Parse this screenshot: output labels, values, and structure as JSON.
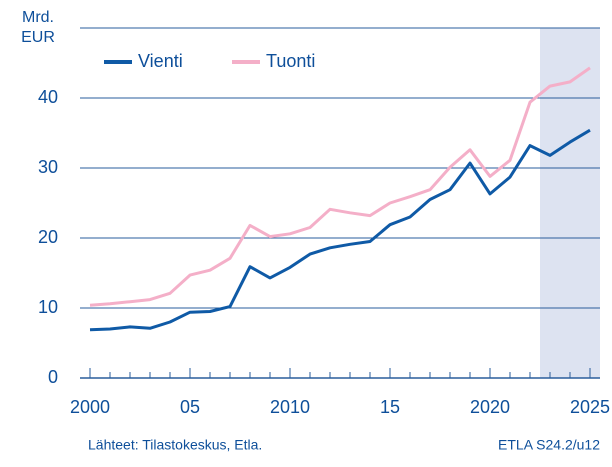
{
  "chart_data": {
    "type": "line",
    "ylabel": [
      "Mrd.",
      "EUR"
    ],
    "x": [
      2000,
      2001,
      2002,
      2003,
      2004,
      2005,
      2006,
      2007,
      2008,
      2009,
      2010,
      2011,
      2012,
      2013,
      2014,
      2015,
      2016,
      2017,
      2018,
      2019,
      2020,
      2021,
      2022,
      2023,
      2024,
      2025
    ],
    "series": [
      {
        "name": "Vienti",
        "color": "#0f5aa6",
        "values": [
          6.9,
          7.0,
          7.3,
          7.1,
          8.0,
          9.4,
          9.5,
          10.2,
          15.9,
          14.3,
          15.8,
          17.7,
          18.6,
          19.1,
          19.5,
          21.9,
          23.0,
          25.5,
          26.9,
          30.7,
          26.3,
          28.7,
          33.2,
          31.8,
          33.7,
          35.4
        ]
      },
      {
        "name": "Tuonti",
        "color": "#f4afc8",
        "values": [
          10.4,
          10.6,
          10.9,
          11.2,
          12.1,
          14.7,
          15.4,
          17.1,
          21.8,
          20.2,
          20.6,
          21.5,
          24.1,
          23.6,
          23.2,
          25.0,
          25.9,
          26.9,
          30.1,
          32.6,
          28.8,
          31.1,
          39.4,
          41.7,
          42.3,
          44.3
        ]
      }
    ],
    "xlim": [
      1999.5,
      2025.5
    ],
    "xticks": [
      2000,
      {
        "value": 2005,
        "label": "05"
      },
      2010,
      {
        "value": 2015,
        "label": "15"
      },
      2020,
      2025
    ],
    "ylim": [
      0,
      50
    ],
    "yticks": [
      0,
      10,
      20,
      30,
      40
    ],
    "forecast_from": 2022.5,
    "forecast_color": "#dde3f1",
    "grid": true,
    "source": "Lähteet:   Tilastokeskus, Etla.",
    "code": "ETLA S24.2/u12"
  }
}
